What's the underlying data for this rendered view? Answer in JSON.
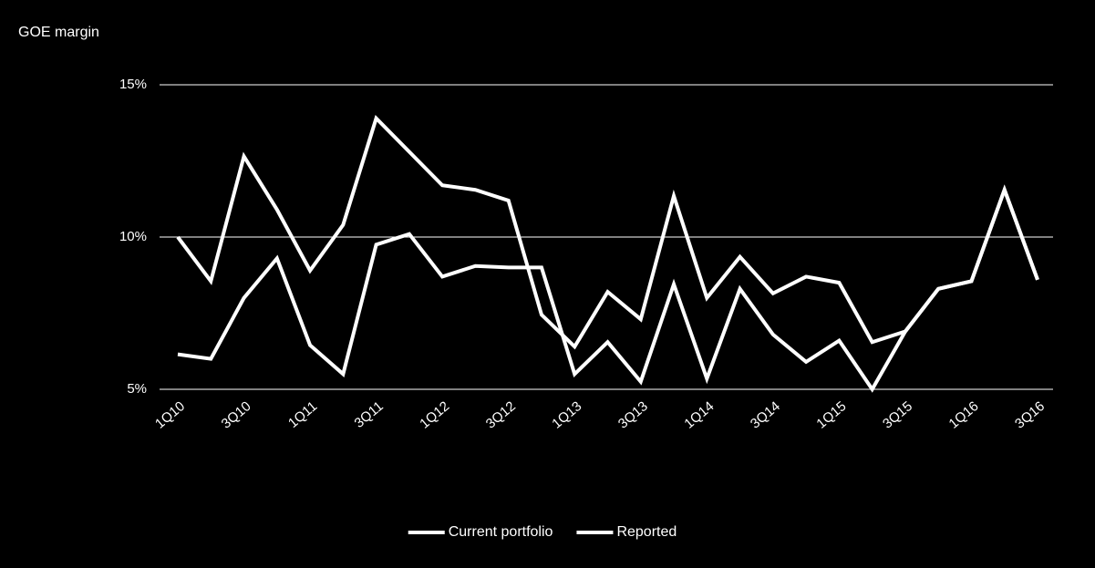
{
  "chart_data": {
    "type": "line",
    "title": "GOE margin",
    "categories": [
      "1Q10",
      null,
      "3Q10",
      null,
      "1Q11",
      null,
      "3Q11",
      null,
      "1Q12",
      null,
      "3Q12",
      null,
      "1Q13",
      null,
      "3Q13",
      null,
      "1Q14",
      null,
      "3Q14",
      null,
      "1Q15",
      null,
      "3Q15",
      null,
      "1Q16",
      null,
      "3Q16"
    ],
    "series": [
      {
        "name": "Current portfolio",
        "color": "#ffffff",
        "values": [
          10.0,
          8.55,
          12.65,
          10.9,
          8.9,
          10.4,
          13.9,
          12.8,
          11.7,
          11.55,
          11.2,
          7.45,
          6.4,
          8.2,
          7.3,
          11.35,
          8.0,
          9.35,
          8.15,
          8.7,
          8.5,
          6.55,
          6.9,
          8.3,
          8.55,
          11.55,
          8.6
        ]
      },
      {
        "name": "Reported",
        "color": "#ffffff",
        "values": [
          6.15,
          6.0,
          8.0,
          9.3,
          6.45,
          5.5,
          9.75,
          10.1,
          8.7,
          9.05,
          9.0,
          9.0,
          5.5,
          6.55,
          5.25,
          8.45,
          5.35,
          8.3,
          6.8,
          5.9,
          6.6,
          5.0,
          6.9,
          8.3,
          8.55,
          11.55,
          8.6
        ]
      }
    ],
    "ylim": [
      5,
      15
    ],
    "yticks": [
      {
        "value": 5,
        "label": "5%"
      },
      {
        "value": 10,
        "label": "10%"
      },
      {
        "value": 15,
        "label": "15%"
      }
    ],
    "grid": true,
    "legend": "bottom"
  }
}
